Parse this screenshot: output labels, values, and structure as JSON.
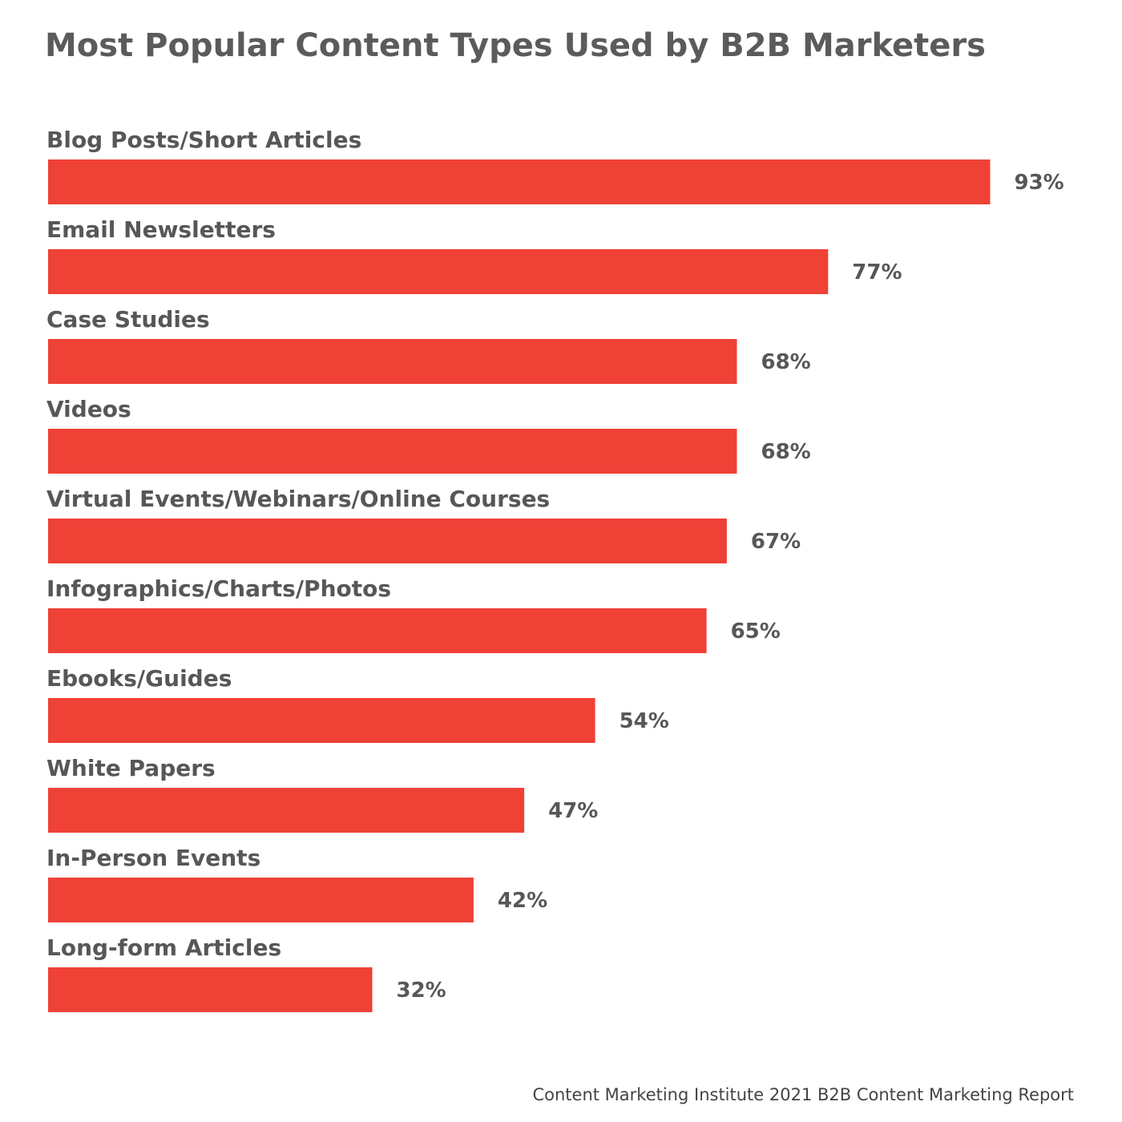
{
  "colors": {
    "bar": "#ef4136",
    "text": "#57575a",
    "background": "#ffffff"
  },
  "chart_data": {
    "type": "bar",
    "orientation": "horizontal",
    "title": "Most Popular Content Types Used by B2B Marketers",
    "categories": [
      "Blog Posts/Short Articles",
      "Email Newsletters",
      "Case Studies",
      "Videos",
      "Virtual Events/Webinars/Online Courses",
      "Infographics/Charts/Photos",
      "Ebooks/Guides",
      "White Papers",
      "In-Person Events",
      "Long-form Articles"
    ],
    "values": [
      93,
      77,
      68,
      68,
      67,
      65,
      54,
      47,
      42,
      32
    ],
    "value_labels": [
      "93%",
      "77%",
      "68%",
      "68%",
      "67%",
      "65%",
      "54%",
      "47%",
      "42%",
      "32%"
    ],
    "unit": "%",
    "xlim": [
      0,
      100
    ],
    "grid": false,
    "legend": "none"
  },
  "source": "Content Marketing Institute 2021 B2B Content Marketing Report"
}
